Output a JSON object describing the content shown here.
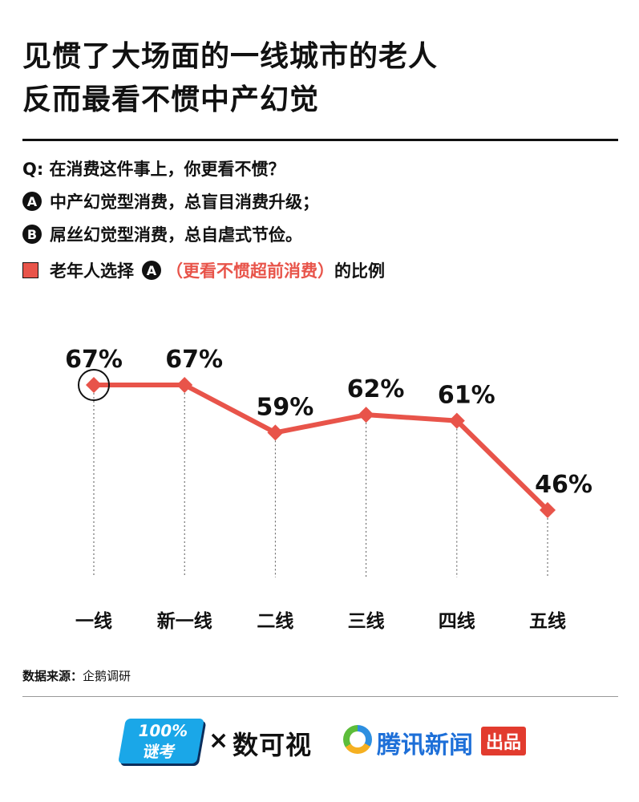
{
  "title": {
    "line1": "见惯了大场面的一线城市的老人",
    "line2": "反而最看不惯中产幻觉"
  },
  "question": {
    "text": "Q: 在消费这件事上，你更看不惯？",
    "option_a": {
      "letter": "A",
      "text": "中产幻觉型消费，总盲目消费升级；"
    },
    "option_b": {
      "letter": "B",
      "text": "屌丝幻觉型消费，总自虐式节俭。"
    }
  },
  "legend": {
    "prefix": "老年人选择",
    "letter": "A",
    "highlight": "（更看不惯超前消费）",
    "suffix": "的比例",
    "color": "#e8544a"
  },
  "chart_data": {
    "type": "line",
    "categories": [
      "一线",
      "新一线",
      "二线",
      "三线",
      "四线",
      "五线"
    ],
    "series": [
      {
        "values": [
          67,
          67,
          59,
          62,
          61,
          46
        ],
        "color": "#e8544a"
      }
    ],
    "value_labels": [
      "67%",
      "67%",
      "59%",
      "62%",
      "61%",
      "46%"
    ],
    "highlighted_category": "一线",
    "grid": false
  },
  "source": {
    "label": "数据来源：",
    "value": "企鹅调研"
  },
  "footer": {
    "logo_a": "100%\n谜考",
    "times": "×",
    "logo_b": "数可视",
    "logo_c_text": "腾讯新闻",
    "logo_c_badge": "出品"
  }
}
